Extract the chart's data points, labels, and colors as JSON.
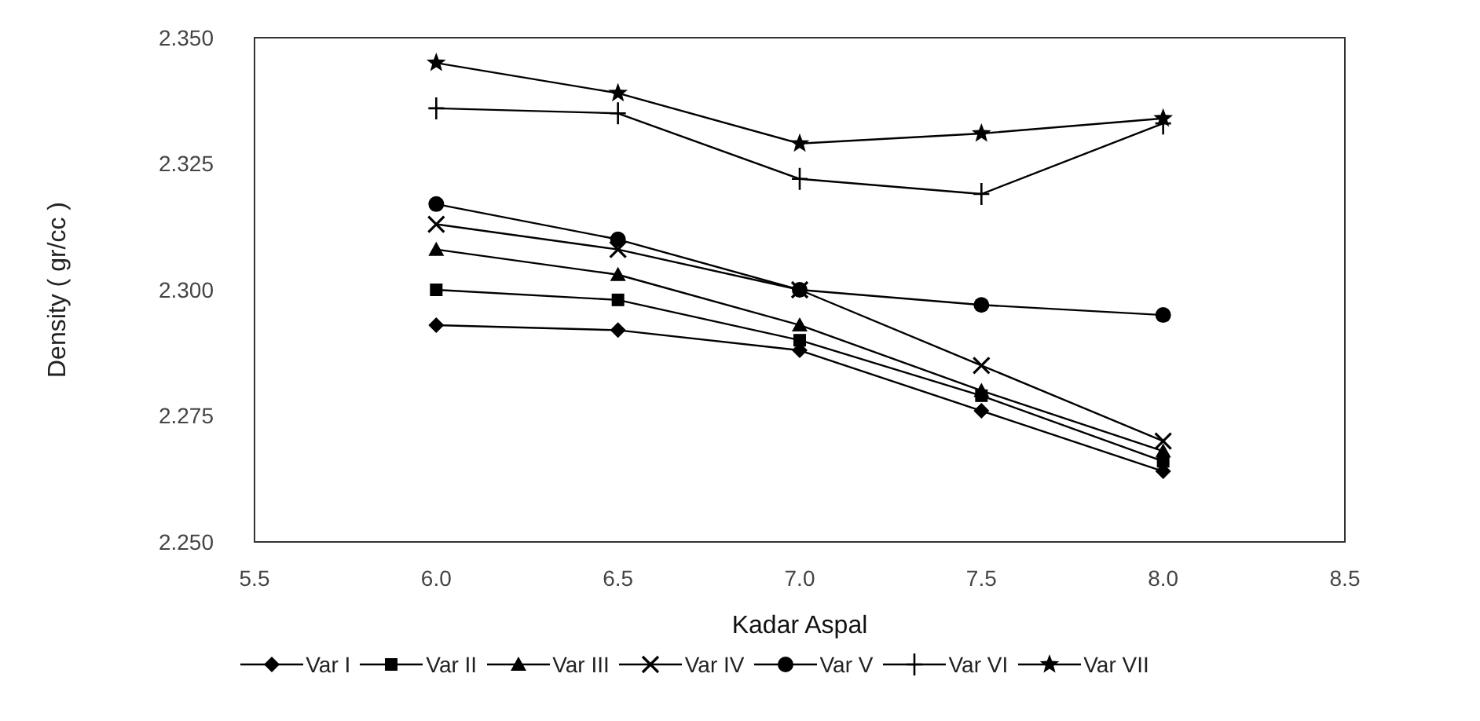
{
  "chart_data": {
    "type": "line",
    "xlabel": "Kadar Aspal",
    "ylabel": "Density ( gr/cc )",
    "x": [
      6.0,
      6.5,
      7.0,
      7.5,
      8.0
    ],
    "xlim": [
      5.5,
      8.5
    ],
    "xticks": [
      {
        "value": 5.5,
        "label": "5.5"
      },
      {
        "value": 6,
        "label": "6.0"
      },
      {
        "value": 6.5,
        "label": "6.5"
      },
      {
        "value": 7,
        "label": "7.0"
      },
      {
        "value": 7.5,
        "label": "7.5"
      },
      {
        "value": 8,
        "label": "8.0"
      },
      {
        "value": 8.5,
        "label": "8.5"
      }
    ],
    "ylim": [
      2.25,
      2.35
    ],
    "yticks": [
      {
        "value": 2.25,
        "label": "2.250"
      },
      {
        "value": 2.275,
        "label": "2.275"
      },
      {
        "value": 2.3,
        "label": "2.300"
      },
      {
        "value": 2.325,
        "label": "2.325"
      },
      {
        "value": 2.35,
        "label": "2.350"
      }
    ],
    "grid": false,
    "legend": "bottom",
    "line_style": "solid",
    "series": [
      {
        "name": "Var I",
        "color": "#000000",
        "marker": "diamond",
        "values": [
          2.293,
          2.292,
          2.288,
          2.276,
          2.264
        ]
      },
      {
        "name": "Var II",
        "color": "#000000",
        "marker": "square",
        "values": [
          2.3,
          2.298,
          2.29,
          2.279,
          2.266
        ]
      },
      {
        "name": "Var III",
        "color": "#000000",
        "marker": "triangle",
        "values": [
          2.308,
          2.303,
          2.293,
          2.28,
          2.268
        ]
      },
      {
        "name": "Var IV",
        "color": "#000000",
        "marker": "cross",
        "values": [
          2.313,
          2.308,
          2.3,
          2.285,
          2.27
        ]
      },
      {
        "name": "Var V",
        "color": "#000000",
        "marker": "circle",
        "values": [
          2.317,
          2.31,
          2.3,
          2.297,
          2.295
        ]
      },
      {
        "name": "Var VI",
        "color": "#000000",
        "marker": "plus",
        "values": [
          2.336,
          2.335,
          2.322,
          2.319,
          2.333
        ]
      },
      {
        "name": "Var VII",
        "color": "#000000",
        "marker": "star",
        "values": [
          2.345,
          2.339,
          2.329,
          2.331,
          2.334
        ]
      }
    ]
  }
}
